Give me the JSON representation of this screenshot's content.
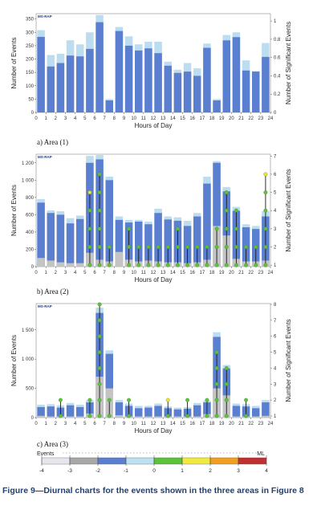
{
  "caption": "Figure 9—Diurnal charts for the events shown in the three areas in Figure 8",
  "colors": {
    "bar_fill": "#5b7fd0",
    "bar_top": "#bcdcf0",
    "bar_base": "#c4c4c4",
    "significant_stem": "#1a1a1a",
    "significant_dot": "#5cc23a",
    "highlight_dot": "#f0e030"
  },
  "legend": {
    "left_label": "Events",
    "right_label": "ML",
    "ticks": [
      "-4",
      "-3",
      "-2",
      "-1",
      "0",
      "1",
      "2",
      "3",
      "4"
    ],
    "colors": [
      "#e6e6ee",
      "#a8a8a8",
      "#5b7fd0",
      "#bde1f2",
      "#5cc23a",
      "#f0ea40",
      "#f0a020",
      "#c03030"
    ]
  },
  "chart_data": [
    {
      "type": "bar",
      "badge": "MS-RAP",
      "sublabel": "a)  Area (1)",
      "xlabel": "Hours of Day",
      "ylabel": "Number of Events",
      "y2label": "Number of Significant Events",
      "x": [
        0,
        1,
        2,
        3,
        4,
        5,
        6,
        7,
        8,
        9,
        10,
        11,
        12,
        13,
        14,
        15,
        16,
        17,
        18,
        19,
        20,
        21,
        22,
        23
      ],
      "xticks": [
        "0",
        "1",
        "2",
        "3",
        "4",
        "5",
        "6",
        "7",
        "8",
        "9",
        "10",
        "11",
        "12",
        "13",
        "14",
        "15",
        "16",
        "17",
        "18",
        "19",
        "20",
        "21",
        "22",
        "23",
        "24"
      ],
      "ylim": [
        0,
        370
      ],
      "yticks": [
        "0",
        "50",
        "100",
        "150",
        "200",
        "250",
        "300",
        "350"
      ],
      "y2lim": [
        0,
        1.08
      ],
      "y2ticks": [
        "0",
        "0.2",
        "0.4",
        "0.6",
        "0.8",
        "1"
      ],
      "totals": [
        308,
        215,
        220,
        270,
        255,
        300,
        365,
        50,
        320,
        285,
        255,
        265,
        265,
        190,
        160,
        185,
        165,
        258,
        50,
        290,
        300,
        195,
        155,
        260
      ],
      "main": [
        283,
        172,
        185,
        213,
        210,
        238,
        338,
        45,
        305,
        250,
        232,
        240,
        222,
        175,
        148,
        153,
        137,
        242,
        45,
        270,
        282,
        157,
        153,
        208
      ],
      "base": [
        0,
        0,
        0,
        0,
        0,
        0,
        0,
        0,
        0,
        0,
        0,
        0,
        0,
        0,
        0,
        0,
        0,
        0,
        0,
        0,
        0,
        0,
        0,
        0
      ],
      "significant": []
    },
    {
      "type": "bar",
      "badge": "MS-RAP",
      "sublabel": "b)  Area (2)",
      "xlabel": "Hours of Day",
      "ylabel": "Number of Events",
      "y2label": "Number of Significant Events",
      "x": [
        0,
        1,
        2,
        3,
        4,
        5,
        6,
        7,
        8,
        9,
        10,
        11,
        12,
        13,
        14,
        15,
        16,
        17,
        18,
        19,
        20,
        21,
        22,
        23
      ],
      "xticks": [
        "0",
        "1",
        "2",
        "3",
        "4",
        "5",
        "6",
        "7",
        "8",
        "9",
        "10",
        "11",
        "12",
        "13",
        "14",
        "15",
        "16",
        "17",
        "18",
        "19",
        "20",
        "21",
        "22",
        "23",
        "24"
      ],
      "ylim": [
        0,
        1300
      ],
      "yticks": [
        "0",
        "200",
        "400",
        "600",
        "800",
        "1 000",
        "1 200"
      ],
      "y2lim": [
        0.92,
        7.1
      ],
      "y2ticks": [
        "1",
        "2",
        "3",
        "4",
        "5",
        "6",
        "7"
      ],
      "totals": [
        780,
        650,
        640,
        560,
        590,
        1280,
        1290,
        1040,
        580,
        540,
        540,
        520,
        670,
        580,
        570,
        530,
        620,
        1040,
        1220,
        920,
        690,
        490,
        470,
        640
      ],
      "main": [
        740,
        620,
        600,
        500,
        550,
        1200,
        1240,
        1000,
        540,
        510,
        520,
        490,
        620,
        545,
        530,
        470,
        580,
        960,
        1200,
        870,
        645,
        455,
        435,
        580
      ],
      "base": [
        100,
        70,
        50,
        40,
        40,
        160,
        80,
        60,
        170,
        80,
        60,
        70,
        60,
        50,
        50,
        40,
        50,
        80,
        470,
        360,
        90,
        60,
        60,
        70
      ],
      "significant": [
        0,
        0,
        0,
        0,
        0,
        5,
        6,
        2,
        0,
        3,
        2,
        2,
        2,
        2,
        3,
        2,
        2,
        2,
        3,
        5,
        4,
        2,
        2,
        6
      ],
      "significant_top_yellow": [
        false,
        false,
        false,
        false,
        false,
        true,
        false,
        false,
        false,
        false,
        false,
        false,
        false,
        false,
        false,
        false,
        false,
        false,
        false,
        false,
        false,
        false,
        false,
        true
      ]
    },
    {
      "type": "bar",
      "badge": "MS-RAP",
      "sublabel": "c)  Area (3)",
      "xlabel": "Hours of Day",
      "ylabel": "Number of Events",
      "y2label": "Number of Significant Events",
      "x": [
        0,
        1,
        2,
        3,
        4,
        5,
        6,
        7,
        8,
        9,
        10,
        11,
        12,
        13,
        14,
        15,
        16,
        17,
        18,
        19,
        20,
        21,
        22,
        23
      ],
      "xticks": [
        "0",
        "1",
        "2",
        "3",
        "4",
        "5",
        "6",
        "7",
        "8",
        "9",
        "10",
        "11",
        "12",
        "13",
        "14",
        "15",
        "16",
        "17",
        "18",
        "19",
        "20",
        "21",
        "22",
        "23",
        "24"
      ],
      "ylim": [
        0,
        1950
      ],
      "yticks": [
        "0",
        "500",
        "1 000",
        "1 500"
      ],
      "y2lim": [
        0.9,
        8.05
      ],
      "y2ticks": [
        "1",
        "2",
        "3",
        "4",
        "5",
        "6",
        "7",
        "8"
      ],
      "totals": [
        220,
        230,
        210,
        250,
        220,
        300,
        1880,
        1150,
        300,
        240,
        200,
        200,
        240,
        190,
        170,
        180,
        250,
        290,
        1460,
        900,
        240,
        230,
        200,
        300
      ],
      "main": [
        180,
        190,
        170,
        210,
        180,
        260,
        1790,
        1090,
        260,
        200,
        160,
        170,
        200,
        160,
        140,
        150,
        210,
        260,
        1380,
        840,
        200,
        190,
        160,
        260
      ],
      "base": [
        30,
        20,
        20,
        20,
        20,
        70,
        700,
        500,
        40,
        20,
        20,
        20,
        20,
        20,
        20,
        20,
        20,
        60,
        500,
        380,
        20,
        20,
        20,
        30
      ],
      "significant": [
        0,
        0,
        2,
        0,
        0,
        2,
        8,
        2,
        0,
        2,
        0,
        0,
        0,
        2,
        0,
        2,
        0,
        2,
        5,
        4,
        0,
        2,
        0,
        0
      ],
      "significant_top_yellow": [
        false,
        false,
        false,
        false,
        false,
        false,
        false,
        false,
        false,
        false,
        false,
        false,
        false,
        true,
        false,
        false,
        false,
        false,
        false,
        false,
        false,
        false,
        false,
        false
      ]
    }
  ]
}
